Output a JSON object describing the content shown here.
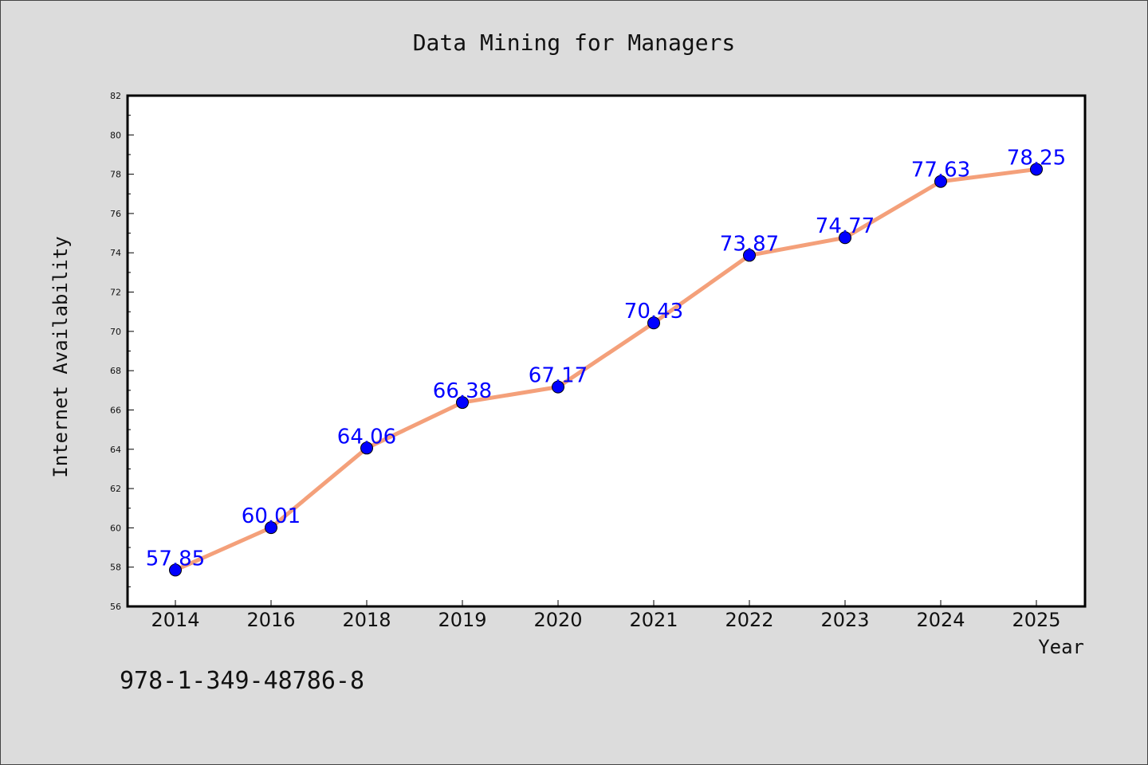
{
  "chart_data": {
    "type": "line",
    "title": "Data Mining for Managers",
    "xlabel": "Year",
    "ylabel": "Internet Availability",
    "categories": [
      "2014",
      "2016",
      "2018",
      "2019",
      "2020",
      "2021",
      "2022",
      "2023",
      "2024",
      "2025"
    ],
    "values": [
      57.85,
      60.01,
      64.06,
      66.38,
      67.17,
      70.43,
      73.87,
      74.77,
      77.63,
      78.25
    ],
    "data_labels": [
      "57.85",
      "60.01",
      "64.06",
      "66.38",
      "67.17",
      "70.43",
      "73.87",
      "74.77",
      "77.63",
      "78.25"
    ],
    "ylim": [
      56,
      82
    ],
    "yticks": [
      56,
      58,
      60,
      62,
      64,
      66,
      68,
      70,
      72,
      74,
      76,
      78,
      80,
      82
    ],
    "grid": false,
    "line_color": "#f4a07a",
    "marker_color": "#0000ff",
    "label_color": "#0000ff",
    "background": "#dcdcdc",
    "plot_background": "#ffffff"
  },
  "footer": {
    "isbn": "978-1-349-48786-8"
  }
}
